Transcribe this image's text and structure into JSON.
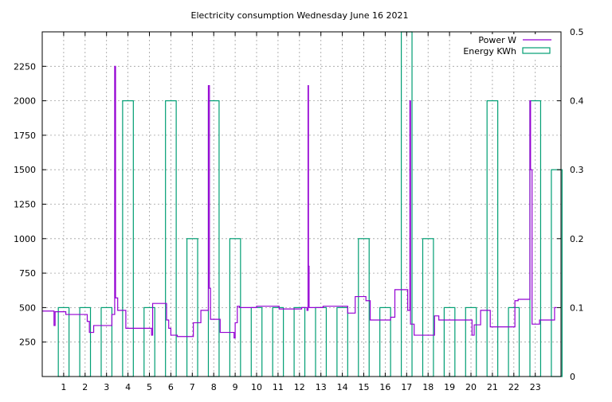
{
  "chart_data": {
    "type": "line",
    "title": "Electricity consumption Wednesday June 16 2021",
    "xlabel": "",
    "ylabel": "",
    "y2label": "",
    "grid": true,
    "legend_position": "top-right",
    "xlim": [
      0,
      24.2
    ],
    "ylim": [
      0,
      2500
    ],
    "y2lim": [
      0,
      0.5
    ],
    "x_ticks": [
      1,
      2,
      3,
      4,
      5,
      6,
      7,
      8,
      9,
      10,
      11,
      12,
      13,
      14,
      15,
      16,
      17,
      18,
      19,
      20,
      21,
      22,
      23
    ],
    "y_ticks": [
      250,
      500,
      750,
      1000,
      1250,
      1500,
      1750,
      2000,
      2250
    ],
    "y2_ticks": [
      0,
      0.1,
      0.2,
      0.3,
      0.4,
      0.5
    ],
    "colors": {
      "power": "#9400d3",
      "energy": "#009e73",
      "grid": "#a0a0a0"
    },
    "series": [
      {
        "name": "Power W",
        "axis": "y",
        "style": "steps",
        "points": [
          [
            0,
            475
          ],
          [
            0.55,
            475
          ],
          [
            0.55,
            370
          ],
          [
            0.6,
            370
          ],
          [
            0.6,
            470
          ],
          [
            1.1,
            470
          ],
          [
            1.1,
            450
          ],
          [
            2.1,
            450
          ],
          [
            2.1,
            400
          ],
          [
            2.2,
            400
          ],
          [
            2.2,
            320
          ],
          [
            2.4,
            320
          ],
          [
            2.4,
            370
          ],
          [
            3.25,
            370
          ],
          [
            3.25,
            450
          ],
          [
            3.38,
            450
          ],
          [
            3.38,
            2250
          ],
          [
            3.42,
            2250
          ],
          [
            3.42,
            570
          ],
          [
            3.52,
            570
          ],
          [
            3.52,
            480
          ],
          [
            3.9,
            480
          ],
          [
            3.9,
            350
          ],
          [
            5.1,
            350
          ],
          [
            5.1,
            300
          ],
          [
            5.15,
            300
          ],
          [
            5.15,
            530
          ],
          [
            5.8,
            530
          ],
          [
            5.8,
            410
          ],
          [
            5.9,
            410
          ],
          [
            5.9,
            350
          ],
          [
            6.0,
            350
          ],
          [
            6.0,
            300
          ],
          [
            6.3,
            300
          ],
          [
            6.3,
            290
          ],
          [
            7.05,
            290
          ],
          [
            7.05,
            390
          ],
          [
            7.4,
            390
          ],
          [
            7.4,
            480
          ],
          [
            7.75,
            480
          ],
          [
            7.75,
            2110
          ],
          [
            7.8,
            2110
          ],
          [
            7.8,
            640
          ],
          [
            7.85,
            640
          ],
          [
            7.85,
            415
          ],
          [
            8.3,
            415
          ],
          [
            8.3,
            320
          ],
          [
            8.95,
            320
          ],
          [
            8.95,
            280
          ],
          [
            9.0,
            280
          ],
          [
            9.0,
            390
          ],
          [
            9.1,
            390
          ],
          [
            9.1,
            510
          ],
          [
            9.2,
            510
          ],
          [
            9.2,
            500
          ],
          [
            10.0,
            500
          ],
          [
            10.0,
            510
          ],
          [
            11.05,
            510
          ],
          [
            11.05,
            490
          ],
          [
            12.1,
            490
          ],
          [
            12.1,
            500
          ],
          [
            12.35,
            500
          ],
          [
            12.35,
            480
          ],
          [
            12.4,
            480
          ],
          [
            12.4,
            2110
          ],
          [
            12.42,
            2110
          ],
          [
            12.42,
            800
          ],
          [
            12.45,
            800
          ],
          [
            12.45,
            500
          ],
          [
            13.1,
            500
          ],
          [
            13.1,
            510
          ],
          [
            14.25,
            510
          ],
          [
            14.25,
            460
          ],
          [
            14.6,
            460
          ],
          [
            14.6,
            580
          ],
          [
            15.1,
            580
          ],
          [
            15.1,
            550
          ],
          [
            15.3,
            550
          ],
          [
            15.3,
            410
          ],
          [
            16.25,
            410
          ],
          [
            16.25,
            430
          ],
          [
            16.45,
            430
          ],
          [
            16.45,
            630
          ],
          [
            17.05,
            630
          ],
          [
            17.05,
            480
          ],
          [
            17.15,
            480
          ],
          [
            17.15,
            2000
          ],
          [
            17.18,
            2000
          ],
          [
            17.18,
            380
          ],
          [
            17.35,
            380
          ],
          [
            17.35,
            300
          ],
          [
            18.3,
            300
          ],
          [
            18.3,
            440
          ],
          [
            18.5,
            440
          ],
          [
            18.5,
            410
          ],
          [
            20.05,
            410
          ],
          [
            20.05,
            300
          ],
          [
            20.15,
            300
          ],
          [
            20.15,
            375
          ],
          [
            20.45,
            375
          ],
          [
            20.45,
            480
          ],
          [
            20.9,
            480
          ],
          [
            20.9,
            360
          ],
          [
            22.05,
            360
          ],
          [
            22.05,
            550
          ],
          [
            22.2,
            550
          ],
          [
            22.2,
            560
          ],
          [
            22.75,
            560
          ],
          [
            22.75,
            2000
          ],
          [
            22.78,
            2000
          ],
          [
            22.78,
            1500
          ],
          [
            22.85,
            1500
          ],
          [
            22.85,
            380
          ],
          [
            23.2,
            380
          ],
          [
            23.2,
            410
          ],
          [
            23.9,
            410
          ],
          [
            23.9,
            500
          ],
          [
            24.0,
            500
          ]
        ]
      },
      {
        "name": "Energy KWh",
        "axis": "y2",
        "style": "boxes",
        "bars": [
          [
            0,
            0.1
          ],
          [
            1,
            0.1
          ],
          [
            2,
            0.1
          ],
          [
            3,
            0.4
          ],
          [
            4,
            0.1
          ],
          [
            5,
            0.4
          ],
          [
            6,
            0.2
          ],
          [
            7,
            0.4
          ],
          [
            8,
            0.2
          ],
          [
            9,
            0.1
          ],
          [
            10,
            0.1
          ],
          [
            11,
            0.1
          ],
          [
            12,
            0.1
          ],
          [
            13,
            0.1
          ],
          [
            14,
            0.2
          ],
          [
            15,
            0.1
          ],
          [
            16,
            0.5
          ],
          [
            17,
            0.2
          ],
          [
            18,
            0.1
          ],
          [
            19,
            0.1
          ],
          [
            20,
            0.4
          ],
          [
            21,
            0.1
          ],
          [
            22,
            0.4
          ],
          [
            23,
            0.3
          ]
        ]
      }
    ]
  }
}
